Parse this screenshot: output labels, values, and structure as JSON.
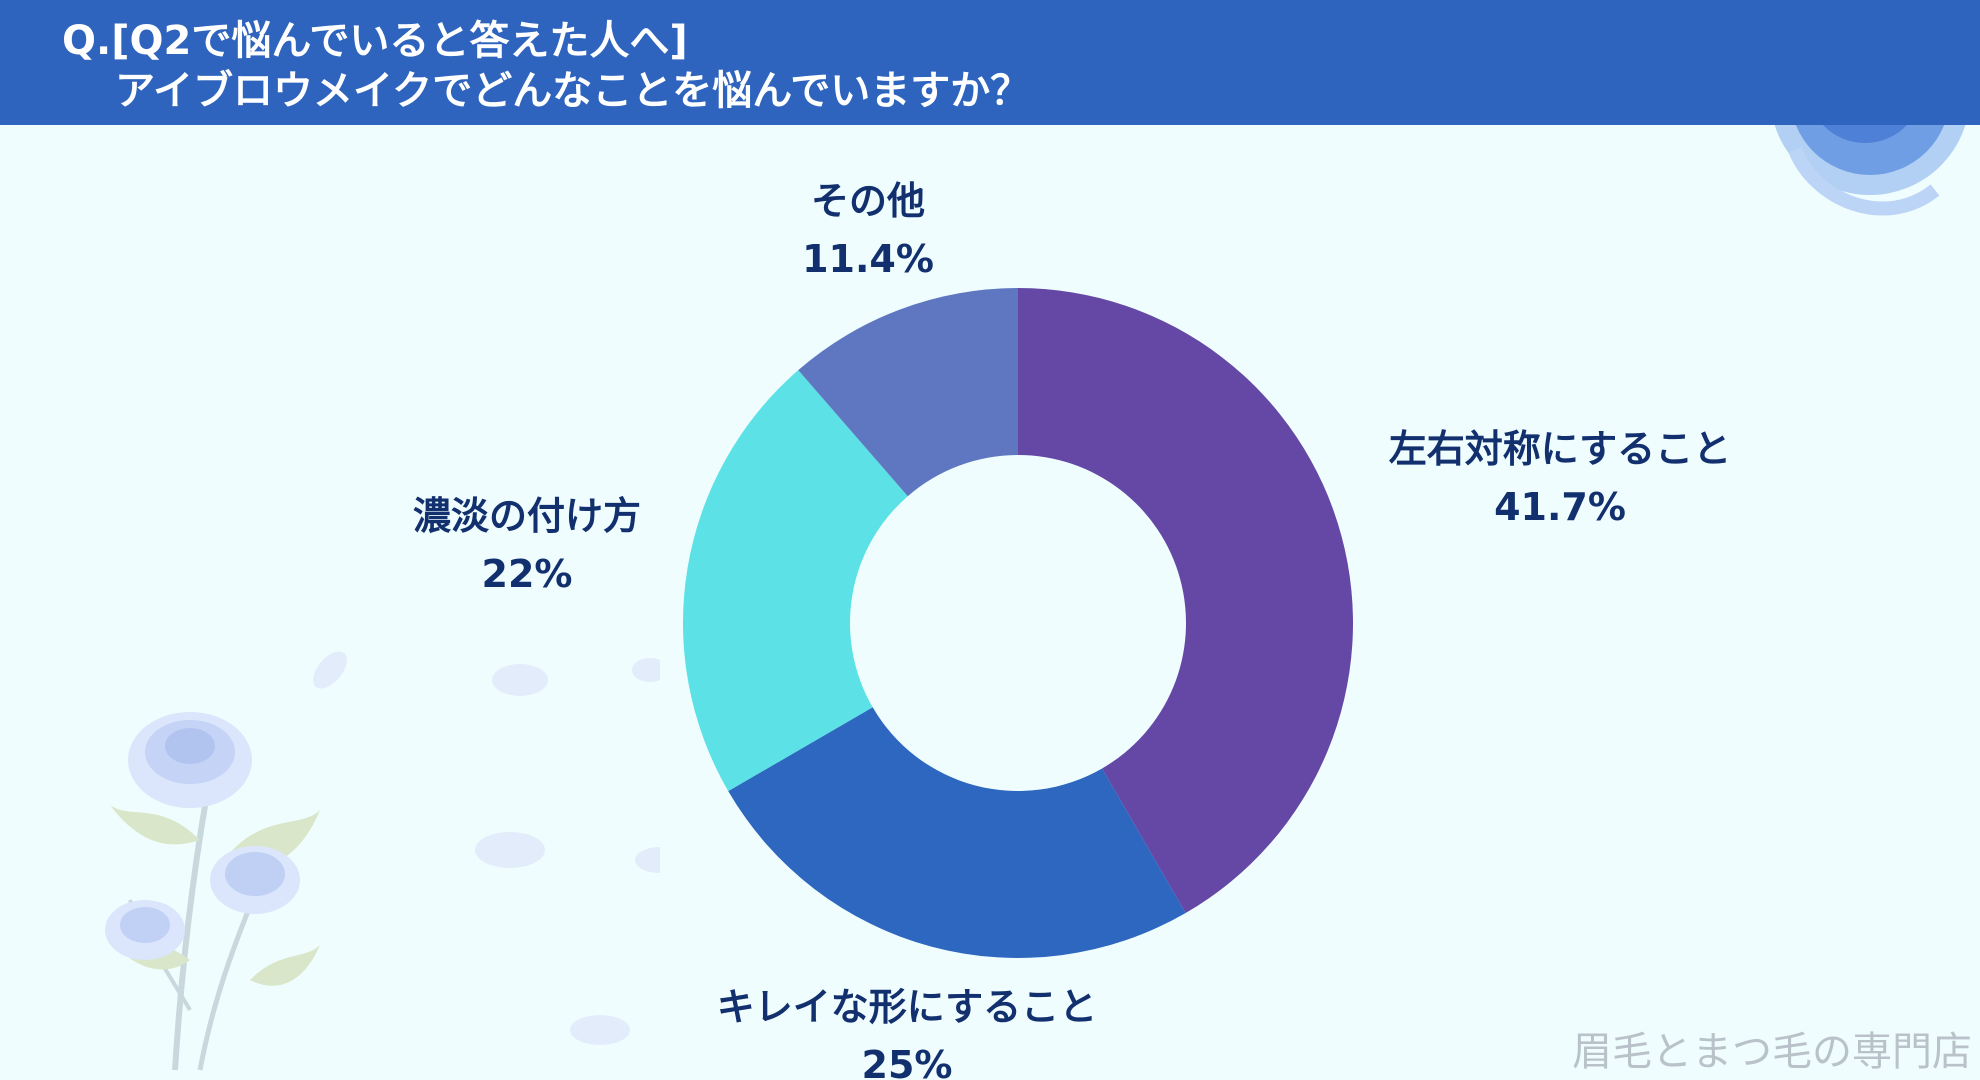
{
  "header": {
    "question_line_1": "Q.[Q2で悩んでいると答えた人へ]",
    "question_line_2": "アイブロウメイクでどんなことを悩んでいますか？"
  },
  "colors": {
    "header_bg": "#2e64bd",
    "page_bg": "#effdfe",
    "label_text": "#13306e"
  },
  "chart_data": {
    "type": "pie",
    "donut": true,
    "categories": [
      "左右対称にすること",
      "キレイな形にすること",
      "濃淡の付け方",
      "その他"
    ],
    "values": [
      41.7,
      25,
      22,
      11.4
    ],
    "value_labels": [
      "41.7%",
      "25%",
      "22%",
      "11.4%"
    ],
    "colors": [
      "#6548a6",
      "#2e67bf",
      "#5ce1e6",
      "#5f77c1"
    ]
  },
  "watermark": "眉毛とまつ毛の専門店",
  "decorations": {
    "top_right": "blue-rose-icon",
    "bottom_left": "blue-rose-bouquet-icon"
  }
}
